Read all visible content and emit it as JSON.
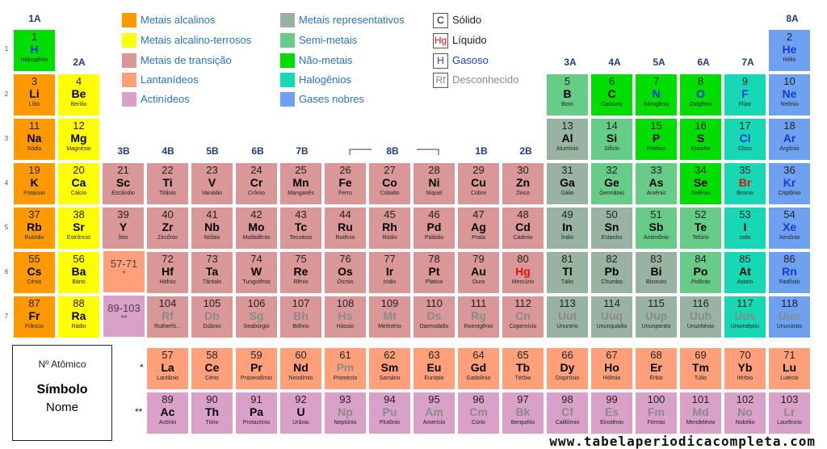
{
  "groups": {
    "g1": "1A",
    "g2": "2A",
    "g3": "3B",
    "g4": "4B",
    "g5": "5B",
    "g6": "6B",
    "g7": "7B",
    "g8": "8B",
    "g11": "1B",
    "g12": "2B",
    "g13": "3A",
    "g14": "4A",
    "g15": "5A",
    "g16": "6A",
    "g17": "7A",
    "g18": "8A"
  },
  "periods": [
    "1",
    "2",
    "3",
    "4",
    "5",
    "6",
    "7"
  ],
  "legend": {
    "categories": [
      {
        "label": "Metais alcalinos",
        "color": "#ff9900"
      },
      {
        "label": "Metais alcalino-terrosos",
        "color": "#ffff00"
      },
      {
        "label": "Metais de transição",
        "color": "#d99797"
      },
      {
        "label": "Lantanídeos",
        "color": "#ffa07a"
      },
      {
        "label": "Actinídeos",
        "color": "#d9a0c8"
      },
      {
        "label": "Metais representativos",
        "color": "#99b3a3"
      },
      {
        "label": "Semi-metais",
        "color": "#66cc88"
      },
      {
        "label": "Não-metais",
        "color": "#00dd00"
      },
      {
        "label": "Halogênios",
        "color": "#16d8b5"
      },
      {
        "label": "Gases nobres",
        "color": "#6ea1f0"
      }
    ],
    "phases": [
      {
        "symbol": "C",
        "label": "Sólido",
        "color": "#000000"
      },
      {
        "symbol": "Hg",
        "label": "Líquido",
        "color": "#e0140c"
      },
      {
        "symbol": "H",
        "label": "Gasoso",
        "color": "#1a3ad8"
      },
      {
        "symbol": "Rf",
        "label": "Desconhecido",
        "color": "#8a8a8a"
      }
    ]
  },
  "key": {
    "number": "Nº Atômico",
    "symbol": "Símbolo",
    "name": "Nome"
  },
  "refs": {
    "lanth_range": "57-71",
    "lanth_mark": "*",
    "actin_range": "89-103",
    "actin_mark": "**",
    "row_lanth_mark": "*",
    "row_actin_mark": "**"
  },
  "footer": "www.tabelaperiodicacompleta.com",
  "elements": [
    [
      "1",
      "H",
      "Hidrogênio",
      1,
      1,
      "nonmet",
      "gas"
    ],
    [
      "2",
      "He",
      "Hélio",
      18,
      1,
      "noble",
      "gas"
    ],
    [
      "3",
      "Li",
      "Lítio",
      1,
      2,
      "alkali",
      "solid"
    ],
    [
      "4",
      "Be",
      "Berílio",
      2,
      2,
      "alkearth",
      "solid"
    ],
    [
      "5",
      "B",
      "Boro",
      13,
      2,
      "semi",
      "solid"
    ],
    [
      "6",
      "C",
      "Carbono",
      14,
      2,
      "nonmet",
      "solid"
    ],
    [
      "7",
      "N",
      "Nitrogênio",
      15,
      2,
      "nonmet",
      "gas"
    ],
    [
      "8",
      "O",
      "Oxigênio",
      16,
      2,
      "nonmet",
      "gas"
    ],
    [
      "9",
      "F",
      "Flúor",
      17,
      2,
      "halo",
      "gas"
    ],
    [
      "10",
      "Ne",
      "Neônio",
      18,
      2,
      "noble",
      "gas"
    ],
    [
      "11",
      "Na",
      "Sódio",
      1,
      3,
      "alkali",
      "solid"
    ],
    [
      "12",
      "Mg",
      "Magnésio",
      2,
      3,
      "alkearth",
      "solid"
    ],
    [
      "13",
      "Al",
      "Alumínio",
      13,
      3,
      "rep",
      "solid"
    ],
    [
      "14",
      "Si",
      "Silício",
      14,
      3,
      "semi",
      "solid"
    ],
    [
      "15",
      "P",
      "Fósforo",
      15,
      3,
      "nonmet",
      "solid"
    ],
    [
      "16",
      "S",
      "Enxofre",
      16,
      3,
      "nonmet",
      "solid"
    ],
    [
      "17",
      "Cl",
      "Cloro",
      17,
      3,
      "halo",
      "gas"
    ],
    [
      "18",
      "Ar",
      "Argônio",
      18,
      3,
      "noble",
      "gas"
    ],
    [
      "19",
      "K",
      "Potássio",
      1,
      4,
      "alkali",
      "solid"
    ],
    [
      "20",
      "Ca",
      "Cálcio",
      2,
      4,
      "alkearth",
      "solid"
    ],
    [
      "21",
      "Sc",
      "Escândio",
      3,
      4,
      "trans",
      "solid"
    ],
    [
      "22",
      "Ti",
      "Titânio",
      4,
      4,
      "trans",
      "solid"
    ],
    [
      "23",
      "V",
      "Vanádio",
      5,
      4,
      "trans",
      "solid"
    ],
    [
      "24",
      "Cr",
      "Crômo",
      6,
      4,
      "trans",
      "solid"
    ],
    [
      "25",
      "Mn",
      "Manganês",
      7,
      4,
      "trans",
      "solid"
    ],
    [
      "26",
      "Fe",
      "Ferro",
      8,
      4,
      "trans",
      "solid"
    ],
    [
      "27",
      "Co",
      "Cobalto",
      9,
      4,
      "trans",
      "solid"
    ],
    [
      "28",
      "Ni",
      "Níquel",
      10,
      4,
      "trans",
      "solid"
    ],
    [
      "29",
      "Cu",
      "Cobre",
      11,
      4,
      "trans",
      "solid"
    ],
    [
      "30",
      "Zn",
      "Zinco",
      12,
      4,
      "trans",
      "solid"
    ],
    [
      "31",
      "Ga",
      "Gálio",
      13,
      4,
      "rep",
      "solid"
    ],
    [
      "32",
      "Ge",
      "Germânio",
      14,
      4,
      "semi",
      "solid"
    ],
    [
      "33",
      "As",
      "Arsênio",
      15,
      4,
      "semi",
      "solid"
    ],
    [
      "34",
      "Se",
      "Selênio",
      16,
      4,
      "nonmet",
      "solid"
    ],
    [
      "35",
      "Br",
      "Bromo",
      17,
      4,
      "halo",
      "liquid"
    ],
    [
      "36",
      "Kr",
      "Criptônio",
      18,
      4,
      "noble",
      "gas"
    ],
    [
      "37",
      "Rb",
      "Rubídio",
      1,
      5,
      "alkali",
      "solid"
    ],
    [
      "38",
      "Sr",
      "Estrôncio",
      2,
      5,
      "alkearth",
      "solid"
    ],
    [
      "39",
      "Y",
      "Ítrio",
      3,
      5,
      "trans",
      "solid"
    ],
    [
      "40",
      "Zr",
      "Zircônio",
      4,
      5,
      "trans",
      "solid"
    ],
    [
      "41",
      "Nb",
      "Nióbio",
      5,
      5,
      "trans",
      "solid"
    ],
    [
      "42",
      "Mo",
      "Molibdênio",
      6,
      5,
      "trans",
      "solid"
    ],
    [
      "43",
      "Tc",
      "Tecnécio",
      7,
      5,
      "trans",
      "solid"
    ],
    [
      "44",
      "Ru",
      "Rutênio",
      8,
      5,
      "trans",
      "solid"
    ],
    [
      "45",
      "Rh",
      "Ródio",
      9,
      5,
      "trans",
      "solid"
    ],
    [
      "46",
      "Pd",
      "Paládio",
      10,
      5,
      "trans",
      "solid"
    ],
    [
      "47",
      "Ag",
      "Prata",
      11,
      5,
      "trans",
      "solid"
    ],
    [
      "48",
      "Cd",
      "Cádmio",
      12,
      5,
      "trans",
      "solid"
    ],
    [
      "49",
      "In",
      "Índio",
      13,
      5,
      "rep",
      "solid"
    ],
    [
      "50",
      "Sn",
      "Estanho",
      14,
      5,
      "rep",
      "solid"
    ],
    [
      "51",
      "Sb",
      "Antimônio",
      15,
      5,
      "semi",
      "solid"
    ],
    [
      "52",
      "Te",
      "Telúrio",
      16,
      5,
      "semi",
      "solid"
    ],
    [
      "53",
      "I",
      "Iodo",
      17,
      5,
      "halo",
      "solid"
    ],
    [
      "54",
      "Xe",
      "Xenônio",
      18,
      5,
      "noble",
      "gas"
    ],
    [
      "55",
      "Cs",
      "Césio",
      1,
      6,
      "alkali",
      "solid"
    ],
    [
      "56",
      "Ba",
      "Bário",
      2,
      6,
      "alkearth",
      "solid"
    ],
    [
      "72",
      "Hf",
      "Háfnio",
      4,
      6,
      "trans",
      "solid"
    ],
    [
      "73",
      "Ta",
      "Tântalo",
      5,
      6,
      "trans",
      "solid"
    ],
    [
      "74",
      "W",
      "Tungstênio",
      6,
      6,
      "trans",
      "solid"
    ],
    [
      "75",
      "Re",
      "Rênio",
      7,
      6,
      "trans",
      "solid"
    ],
    [
      "76",
      "Os",
      "Ósmio",
      8,
      6,
      "trans",
      "solid"
    ],
    [
      "77",
      "Ir",
      "Irídio",
      9,
      6,
      "trans",
      "solid"
    ],
    [
      "78",
      "Pt",
      "Platina",
      10,
      6,
      "trans",
      "solid"
    ],
    [
      "79",
      "Au",
      "Ouro",
      11,
      6,
      "trans",
      "solid"
    ],
    [
      "80",
      "Hg",
      "Mercúrio",
      12,
      6,
      "trans",
      "liquid"
    ],
    [
      "81",
      "Tl",
      "Tálio",
      13,
      6,
      "rep",
      "solid"
    ],
    [
      "82",
      "Pb",
      "Chumbo",
      14,
      6,
      "rep",
      "solid"
    ],
    [
      "83",
      "Bi",
      "Bismuto",
      15,
      6,
      "rep",
      "solid"
    ],
    [
      "84",
      "Po",
      "Polônio",
      16,
      6,
      "semi",
      "solid"
    ],
    [
      "85",
      "At",
      "Astato",
      17,
      6,
      "halo",
      "solid"
    ],
    [
      "86",
      "Rn",
      "Radônio",
      18,
      6,
      "noble",
      "gas"
    ],
    [
      "87",
      "Fr",
      "Frâncio",
      1,
      7,
      "alkali",
      "solid"
    ],
    [
      "88",
      "Ra",
      "Rádio",
      2,
      7,
      "alkearth",
      "solid"
    ],
    [
      "104",
      "Rf",
      "Rutherfó...",
      4,
      7,
      "trans",
      "unknown"
    ],
    [
      "105",
      "Db",
      "Dúbnio",
      5,
      7,
      "trans",
      "unknown"
    ],
    [
      "106",
      "Sg",
      "Seabórgio",
      6,
      7,
      "trans",
      "unknown"
    ],
    [
      "107",
      "Bh",
      "Bóhrio",
      7,
      7,
      "trans",
      "unknown"
    ],
    [
      "108",
      "Hs",
      "Hássio",
      8,
      7,
      "trans",
      "unknown"
    ],
    [
      "109",
      "Mt",
      "Meitnério",
      9,
      7,
      "trans",
      "unknown"
    ],
    [
      "110",
      "Ds",
      "Darmstádio",
      10,
      7,
      "trans",
      "unknown"
    ],
    [
      "111",
      "Rg",
      "Roentgênio",
      11,
      7,
      "trans",
      "unknown"
    ],
    [
      "112",
      "Cn",
      "Copernício",
      12,
      7,
      "trans",
      "unknown"
    ],
    [
      "113",
      "Uut",
      "Ununtrio",
      13,
      7,
      "rep",
      "unknown"
    ],
    [
      "114",
      "Uuq",
      "Ununquádio",
      14,
      7,
      "rep",
      "unknown"
    ],
    [
      "115",
      "Uup",
      "Ununpentio",
      15,
      7,
      "rep",
      "unknown"
    ],
    [
      "116",
      "Uuh",
      "Ununhéxio",
      16,
      7,
      "rep",
      "unknown"
    ],
    [
      "117",
      "Uus",
      "Ununséptio",
      17,
      7,
      "halo",
      "unknown"
    ],
    [
      "118",
      "Uuo",
      "Ununóctio",
      18,
      7,
      "noble",
      "unknown"
    ],
    [
      "57",
      "La",
      "Lantânio",
      4,
      8,
      "lanth",
      "solid"
    ],
    [
      "58",
      "Ce",
      "Cério",
      5,
      8,
      "lanth",
      "solid"
    ],
    [
      "59",
      "Pr",
      "Praseodímio",
      6,
      8,
      "lanth",
      "solid"
    ],
    [
      "60",
      "Nd",
      "Neodímio",
      7,
      8,
      "lanth",
      "solid"
    ],
    [
      "61",
      "Pm",
      "Promécio",
      8,
      8,
      "lanth",
      "unknown"
    ],
    [
      "62",
      "Sm",
      "Samário",
      9,
      8,
      "lanth",
      "solid"
    ],
    [
      "63",
      "Eu",
      "Európio",
      10,
      8,
      "lanth",
      "solid"
    ],
    [
      "64",
      "Gd",
      "Gadolínio",
      11,
      8,
      "lanth",
      "solid"
    ],
    [
      "65",
      "Tb",
      "Térbio",
      12,
      8,
      "lanth",
      "solid"
    ],
    [
      "66",
      "Dy",
      "Disprósio",
      13,
      8,
      "lanth",
      "solid"
    ],
    [
      "67",
      "Ho",
      "Hólmio",
      14,
      8,
      "lanth",
      "solid"
    ],
    [
      "68",
      "Er",
      "Érbio",
      15,
      8,
      "lanth",
      "solid"
    ],
    [
      "69",
      "Tm",
      "Túlio",
      16,
      8,
      "lanth",
      "solid"
    ],
    [
      "70",
      "Yb",
      "Itérbio",
      17,
      8,
      "lanth",
      "solid"
    ],
    [
      "71",
      "Lu",
      "Lutécio",
      18,
      8,
      "lanth",
      "solid"
    ],
    [
      "89",
      "Ac",
      "Actínio",
      4,
      9,
      "actin",
      "solid"
    ],
    [
      "90",
      "Th",
      "Tório",
      5,
      9,
      "actin",
      "solid"
    ],
    [
      "91",
      "Pa",
      "Protactínio",
      6,
      9,
      "actin",
      "solid"
    ],
    [
      "92",
      "U",
      "Urânio",
      7,
      9,
      "actin",
      "solid"
    ],
    [
      "93",
      "Np",
      "Neptúnio",
      8,
      9,
      "actin",
      "unknown"
    ],
    [
      "94",
      "Pu",
      "Plutônio",
      9,
      9,
      "actin",
      "unknown"
    ],
    [
      "95",
      "Am",
      "Amerício",
      10,
      9,
      "actin",
      "unknown"
    ],
    [
      "96",
      "Cm",
      "Cúrio",
      11,
      9,
      "actin",
      "unknown"
    ],
    [
      "97",
      "Bk",
      "Berquélio",
      12,
      9,
      "actin",
      "unknown"
    ],
    [
      "98",
      "Cf",
      "Califórnio",
      13,
      9,
      "actin",
      "unknown"
    ],
    [
      "99",
      "Es",
      "Einstênio",
      14,
      9,
      "actin",
      "unknown"
    ],
    [
      "100",
      "Fm",
      "Férmio",
      15,
      9,
      "actin",
      "unknown"
    ],
    [
      "101",
      "Md",
      "Mendelévio",
      16,
      9,
      "actin",
      "unknown"
    ],
    [
      "102",
      "No",
      "Nobélio",
      17,
      9,
      "actin",
      "unknown"
    ],
    [
      "103",
      "Lr",
      "Laurêncio",
      18,
      9,
      "actin",
      "unknown"
    ]
  ]
}
